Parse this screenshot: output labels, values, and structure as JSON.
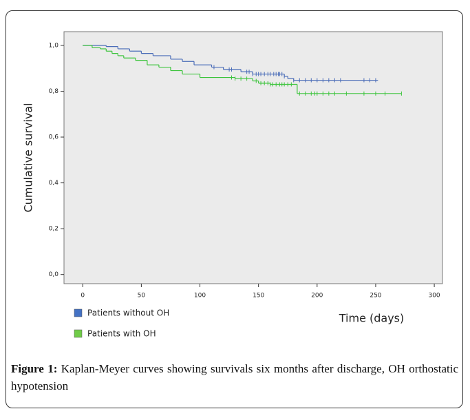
{
  "chart_data": {
    "type": "km-step",
    "xlabel": "Time (days)",
    "ylabel": "Cumulative survival",
    "xlim": [
      -16,
      307
    ],
    "ylim": [
      -0.04,
      1.06
    ],
    "xticks": [
      0,
      50,
      100,
      150,
      200,
      250,
      300
    ],
    "yticks": [
      {
        "value": 0,
        "label": "0,0"
      },
      {
        "value": 0.2,
        "label": "0,2"
      },
      {
        "value": 0.4,
        "label": "0,4"
      },
      {
        "value": 0.6,
        "label": "0,6"
      },
      {
        "value": 0.8,
        "label": "0,8"
      },
      {
        "value": 1,
        "label": "1,0"
      }
    ],
    "series": [
      {
        "name": "Patients without OH",
        "color": "#4a6cb8",
        "legend_color": "#4472c4",
        "x": [
          0,
          20,
          30,
          40,
          50,
          60,
          75,
          85,
          95,
          110,
          120,
          135,
          145,
          172,
          175,
          180,
          252
        ],
        "values": [
          1.0,
          0.995,
          0.985,
          0.975,
          0.965,
          0.955,
          0.94,
          0.93,
          0.915,
          0.905,
          0.895,
          0.885,
          0.875,
          0.865,
          0.855,
          0.848,
          0.848
        ],
        "censored": [
          112,
          125,
          127,
          140,
          142,
          145,
          148,
          150,
          152,
          155,
          158,
          160,
          163,
          165,
          167,
          168,
          170,
          172,
          180,
          185,
          190,
          195,
          200,
          205,
          210,
          215,
          220,
          240,
          245,
          250
        ]
      },
      {
        "name": "Patients with OH",
        "color": "#3cc43c",
        "legend_color": "#70cc48",
        "x": [
          0,
          8,
          15,
          20,
          25,
          30,
          35,
          45,
          55,
          65,
          75,
          85,
          100,
          130,
          145,
          150,
          160,
          183,
          272
        ],
        "values": [
          1.0,
          0.99,
          0.985,
          0.975,
          0.965,
          0.955,
          0.945,
          0.935,
          0.915,
          0.905,
          0.89,
          0.875,
          0.86,
          0.855,
          0.845,
          0.835,
          0.83,
          0.79,
          0.79
        ],
        "censored": [
          127,
          130,
          135,
          140,
          148,
          152,
          155,
          158,
          160,
          162,
          165,
          168,
          170,
          172,
          175,
          178,
          185,
          190,
          195,
          198,
          200,
          205,
          210,
          215,
          225,
          240,
          250,
          258,
          272
        ]
      }
    ]
  },
  "caption": {
    "label": "Figure 1:",
    "text": "Kaplan-Meyer curves showing survivals six months after discharge, OH orthostatic hypotension"
  }
}
